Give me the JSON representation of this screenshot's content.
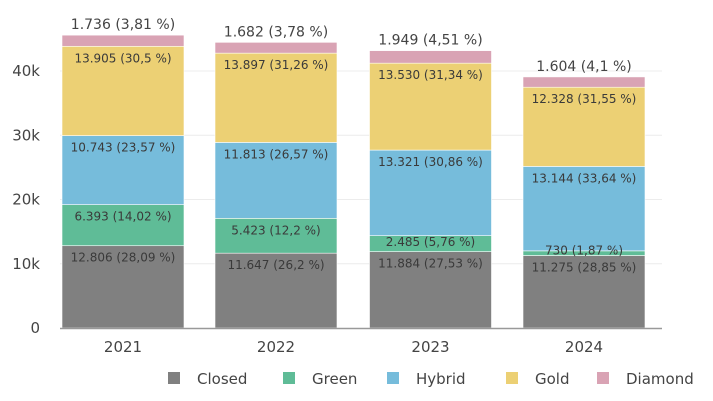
{
  "chart_data": {
    "type": "bar",
    "stacked": true,
    "title": "",
    "xlabel": "",
    "ylabel": "",
    "ylim": [
      0,
      46000
    ],
    "yticks": [
      0,
      10000,
      20000,
      30000,
      40000
    ],
    "ytick_labels": [
      "0",
      "10k",
      "20k",
      "30k",
      "40k"
    ],
    "grid": true,
    "legend_position": "bottom-right",
    "categories": [
      "2021",
      "2022",
      "2023",
      "2024"
    ],
    "series": [
      {
        "name": "Closed",
        "color": "#808080",
        "values": [
          12806,
          11647,
          11884,
          11275
        ],
        "labels": [
          "12.806 (28,09 %)",
          "11.647 (26,2 %)",
          "11.884 (27,53 %)",
          "11.275 (28,85 %)"
        ]
      },
      {
        "name": "Green",
        "color": "#5fbc97",
        "values": [
          6393,
          5423,
          2485,
          730
        ],
        "labels": [
          "6.393 (14,02 %)",
          "5.423 (12,2 %)",
          "2.485 (5,76 %)",
          "730 (1,87 %)"
        ]
      },
      {
        "name": "Hybrid",
        "color": "#76bcdb",
        "values": [
          10743,
          11813,
          13321,
          13144
        ],
        "labels": [
          "10.743 (23,57 %)",
          "11.813 (26,57 %)",
          "13.321 (30,86 %)",
          "13.144 (33,64 %)"
        ]
      },
      {
        "name": "Gold",
        "color": "#ecd074",
        "values": [
          13905,
          13897,
          13530,
          12328
        ],
        "labels": [
          "13.905 (30,5 %)",
          "13.897 (31,26 %)",
          "13.530 (31,34 %)",
          "12.328 (31,55 %)"
        ]
      },
      {
        "name": "Diamond",
        "color": "#d9a3b4",
        "values": [
          1736,
          1682,
          1949,
          1604
        ],
        "labels": [
          "1.736 (3,81 %)",
          "1.682 (3,78 %)",
          "1.949 (4,51 %)",
          "1.604 (4,1 %)"
        ]
      }
    ]
  }
}
